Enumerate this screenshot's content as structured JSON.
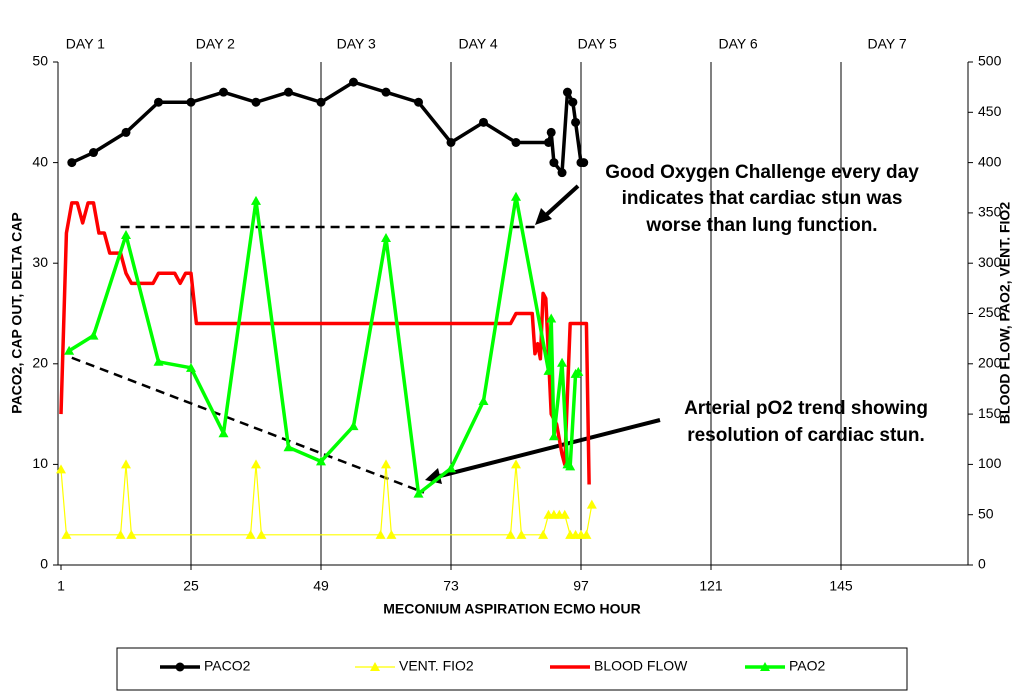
{
  "chart_data": {
    "type": "line",
    "x_label": "MECONIUM ASPIRATION ECMO HOUR",
    "y_label": "PACO2, CAP OUT, DELTA CAP",
    "y2_label": "BLOOD FLOW, PAO2, VENT. FIO2",
    "xlim": [
      1,
      169
    ],
    "xticks": [
      1,
      25,
      49,
      73,
      97,
      121,
      145
    ],
    "ylim": [
      0,
      50
    ],
    "yticks": [
      0,
      10,
      20,
      30,
      40,
      50
    ],
    "y2lim": [
      0,
      500
    ],
    "y2ticks": [
      0,
      50,
      100,
      150,
      200,
      250,
      300,
      350,
      400,
      450,
      500
    ],
    "grid": "x",
    "day_labels": [
      {
        "x": 5.5,
        "label": "DAY 1"
      },
      {
        "x": 29.5,
        "label": "DAY 2"
      },
      {
        "x": 55.5,
        "label": "DAY 3"
      },
      {
        "x": 78,
        "label": "DAY 4"
      },
      {
        "x": 100,
        "label": "DAY 5"
      },
      {
        "x": 126,
        "label": "DAY 6"
      },
      {
        "x": 153.5,
        "label": "DAY 7"
      }
    ],
    "series": [
      {
        "name": "PACO2",
        "color": "#000000",
        "marker": "circle",
        "axis": "y",
        "x": [
          3,
          7,
          13,
          19,
          25,
          31,
          37,
          43,
          49,
          55,
          61,
          67,
          73,
          79,
          85,
          91,
          91.5,
          92,
          93.5,
          94.5,
          95.5,
          96,
          97,
          97.5
        ],
        "values": [
          40,
          41,
          43,
          46,
          46,
          47,
          46,
          47,
          46,
          48,
          47,
          46,
          42,
          44,
          42,
          42,
          43,
          40,
          39,
          47,
          46,
          44,
          40,
          40
        ]
      },
      {
        "name": "VENT. FIO2",
        "color": "#ffff00",
        "marker": "triangle",
        "axis": "y2",
        "x": [
          1,
          2,
          12,
          13,
          14,
          36,
          37,
          38,
          60,
          61,
          62,
          84,
          85,
          86,
          90,
          91,
          92,
          93,
          94,
          95,
          96,
          97,
          98,
          99
        ],
        "values": [
          95,
          30,
          30,
          100,
          30,
          30,
          100,
          30,
          30,
          100,
          30,
          30,
          100,
          30,
          30,
          50,
          50,
          50,
          50,
          30,
          30,
          30,
          30,
          60
        ]
      },
      {
        "name": "BLOOD FLOW",
        "color": "#ff0000",
        "marker": "none",
        "axis": "y2",
        "x": [
          1,
          2,
          3,
          4,
          5,
          6,
          7,
          8,
          9,
          10,
          12,
          13,
          14,
          18,
          19,
          22,
          23,
          24,
          25,
          26,
          84,
          85,
          88,
          88.5,
          89,
          89.5,
          90,
          90.5,
          91.5,
          92.5,
          93.5,
          94,
          95,
          95.5,
          98,
          98.5
        ],
        "values": [
          150,
          330,
          360,
          360,
          340,
          360,
          360,
          330,
          330,
          310,
          310,
          290,
          280,
          280,
          290,
          290,
          280,
          290,
          290,
          240,
          240,
          250,
          250,
          210,
          220,
          205,
          270,
          265,
          150,
          140,
          110,
          100,
          240,
          240,
          240,
          80
        ]
      },
      {
        "name": "PAO2",
        "color": "#00ff00",
        "marker": "triangle",
        "axis": "y2",
        "x": [
          2.5,
          7,
          13,
          19,
          25,
          31,
          37,
          43,
          49,
          55,
          61,
          67,
          73,
          79,
          85,
          91,
          91.5,
          92,
          93.5,
          94.5,
          95,
          96,
          96.5
        ],
        "values": [
          213,
          228,
          328,
          202,
          196,
          131,
          362,
          117,
          103,
          138,
          325,
          71,
          96,
          163,
          366,
          193,
          245,
          128,
          201,
          100,
          98,
          190,
          192
        ]
      }
    ],
    "dashed_lines": [
      {
        "x": [
          12,
          89
        ],
        "values": [
          336,
          336
        ]
      },
      {
        "x": [
          3,
          68
        ],
        "values": [
          206,
          72
        ]
      }
    ],
    "annotations": [
      {
        "lines": [
          "Good Oxygen Challenge every day",
          "indicates that cardiac stun was",
          "worse than lung function."
        ]
      },
      {
        "lines": [
          "Arterial pO2 trend showing",
          "resolution of cardiac stun."
        ]
      }
    ]
  }
}
